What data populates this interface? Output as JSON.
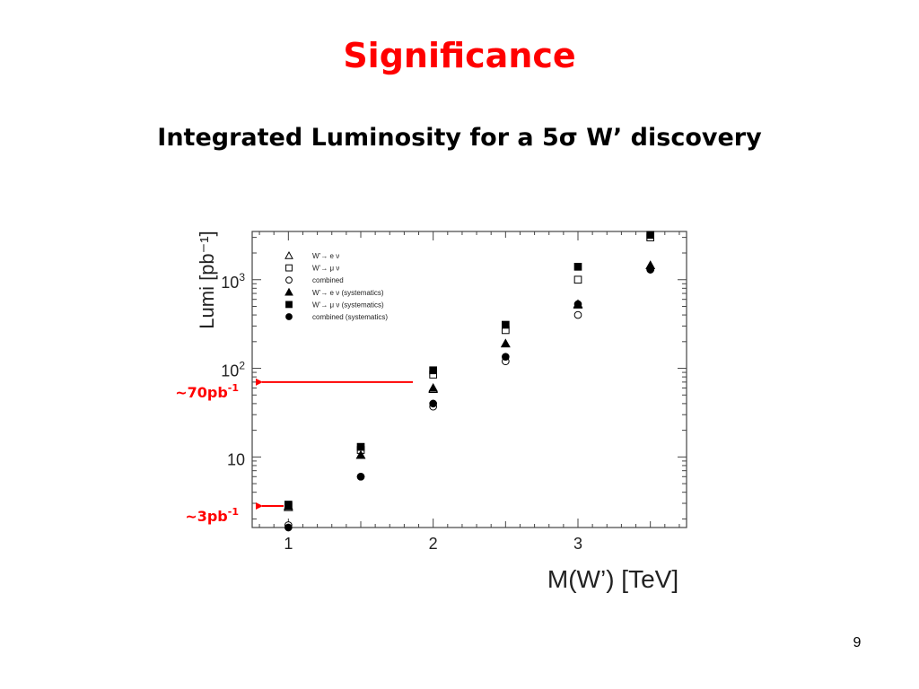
{
  "slide": {
    "title": "Significance",
    "subtitle": "Integrated Luminosity for a 5σ W’ discovery",
    "page_number": "9"
  },
  "chart_data": {
    "type": "scatter",
    "xlabel": "M(W’) [TeV]",
    "ylabel": "Lumi [pb⁻¹]",
    "xlim": [
      0.75,
      3.75
    ],
    "ylim": [
      1.6,
      3500
    ],
    "yscale": "log",
    "x_ticks": [
      {
        "value": 1,
        "label": "1"
      },
      {
        "value": 2,
        "label": "2"
      },
      {
        "value": 3,
        "label": "3"
      }
    ],
    "y_ticks": [
      {
        "value": 10,
        "base": "10",
        "exp": ""
      },
      {
        "value": 100,
        "base": "10",
        "exp": "2"
      },
      {
        "value": 1000,
        "base": "10",
        "exp": "3"
      }
    ],
    "legend_position": "top-left",
    "series": [
      {
        "name": "W’→ e ν",
        "marker": "triangle-open",
        "x": [
          1,
          1.5,
          2,
          2.5,
          3,
          3.5
        ],
        "y": [
          2.7,
          10.5,
          58,
          190,
          520,
          1450
        ]
      },
      {
        "name": "W’→ μ ν",
        "marker": "square-open",
        "x": [
          1,
          1.5,
          2,
          2.5,
          3,
          3.5
        ],
        "y": [
          2.8,
          12,
          85,
          270,
          1000,
          3000
        ]
      },
      {
        "name": "combined",
        "marker": "circle-open",
        "x": [
          1,
          1.5,
          2,
          2.5,
          3,
          3.5
        ],
        "y": [
          1.7,
          6,
          37,
          120,
          400,
          1300
        ]
      },
      {
        "name": "W’→ e ν (systematics)",
        "marker": "triangle-filled",
        "x": [
          1,
          1.5,
          2,
          2.5,
          3,
          3.5
        ],
        "y": [
          2.8,
          10.5,
          60,
          190,
          530,
          1450
        ]
      },
      {
        "name": "W’→ μ ν (systematics)",
        "marker": "square-filled",
        "x": [
          1,
          1.5,
          2,
          2.5,
          3,
          3.5
        ],
        "y": [
          2.9,
          13,
          95,
          310,
          1400,
          3200
        ]
      },
      {
        "name": "combined (systematics)",
        "marker": "circle-filled",
        "x": [
          1,
          1.5,
          2,
          2.5,
          3,
          3.5
        ],
        "y": [
          1.6,
          6,
          40,
          135,
          530,
          1300
        ]
      }
    ],
    "annotations": [
      {
        "text": "~70pb",
        "sup": "-1",
        "y": 70,
        "color": "#ff0000"
      },
      {
        "text": "~3pb",
        "sup": "-1",
        "y": 2.8,
        "color": "#ff0000"
      }
    ]
  }
}
